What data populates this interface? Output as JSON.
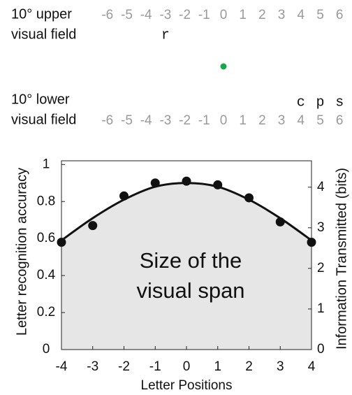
{
  "display": {
    "upper_label": [
      "10° upper",
      "visual field"
    ],
    "lower_label": [
      "10° lower",
      "visual field"
    ],
    "positions": [
      -6,
      -5,
      -4,
      -3,
      -2,
      -1,
      0,
      1,
      2,
      3,
      4,
      5,
      6
    ],
    "upper_letters": [
      {
        "position": -3,
        "letter": "r"
      }
    ],
    "lower_letters": [
      {
        "position": 4,
        "letter": "c"
      },
      {
        "position": 5,
        "letter": "p"
      },
      {
        "position": 6,
        "letter": "s"
      }
    ],
    "fixation": {
      "position": 0,
      "color": "#1aa64a"
    }
  },
  "chart_data": {
    "type": "line",
    "x": [
      -4,
      -3,
      -2,
      -1,
      0,
      1,
      2,
      3,
      4
    ],
    "series": [
      {
        "color": "#111111",
        "marker": "circle",
        "values": [
          0.58,
          0.67,
          0.83,
          0.9,
          0.91,
          0.89,
          0.82,
          0.69,
          0.58
        ]
      },
      {
        "color": "#111111",
        "marker": "none",
        "fill": "#e6e6e6",
        "values": [
          0.59,
          0.71,
          0.81,
          0.88,
          0.9,
          0.88,
          0.81,
          0.71,
          0.59
        ]
      }
    ],
    "xlim": [
      -4,
      4
    ],
    "xticks": [
      -4,
      -3,
      -2,
      -1,
      0,
      1,
      2,
      3,
      4
    ],
    "ylim": [
      0,
      1.02
    ],
    "yticks": [
      0,
      0.2,
      0.4,
      0.6,
      0.8,
      1
    ],
    "y2lim": [
      0,
      4.65
    ],
    "y2ticks": [
      0,
      1,
      2,
      3,
      4
    ],
    "xlabel": "Letter Positions",
    "ylabel": "Letter recognition accuracy",
    "y2label": "Information Transmitted (bits)",
    "annotation": [
      "Size of the",
      "visual span"
    ]
  }
}
